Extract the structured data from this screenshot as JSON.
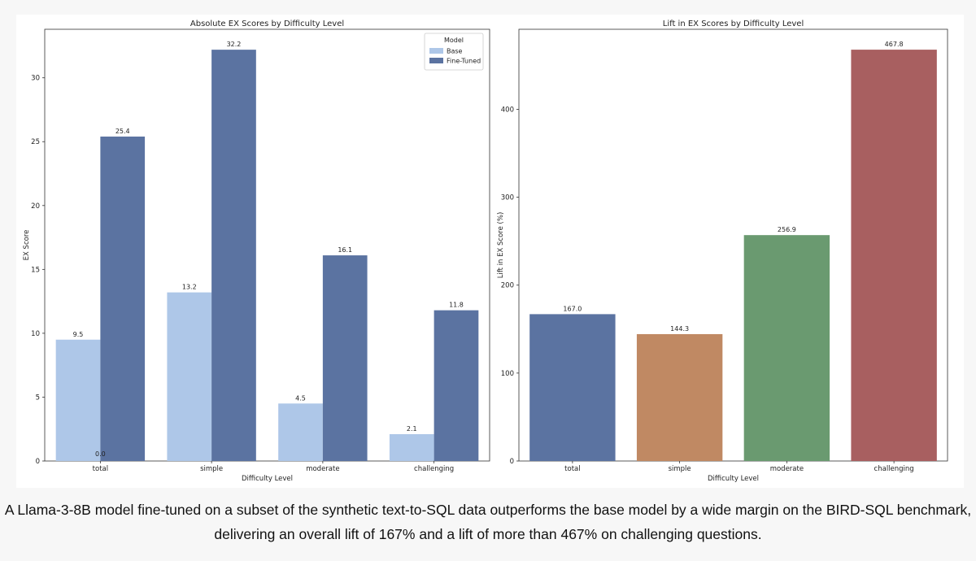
{
  "chart_data": [
    {
      "type": "bar",
      "title": "Absolute EX Scores by Difficulty Level",
      "xlabel": "Difficulty Level",
      "ylabel": "EX Score",
      "categories": [
        "total",
        "simple",
        "moderate",
        "challenging"
      ],
      "series": [
        {
          "name": "Base",
          "values": [
            9.5,
            13.2,
            4.5,
            2.1
          ],
          "color": "#aec7e8"
        },
        {
          "name": "Fine-Tuned",
          "values": [
            25.4,
            32.2,
            16.1,
            11.8
          ],
          "color": "#5b73a1"
        }
      ],
      "value_labels": [
        [
          "9.5",
          "13.2",
          "4.5",
          "2.1"
        ],
        [
          "25.4",
          "32.2",
          "16.1",
          "11.8"
        ]
      ],
      "extra_annotation": "0.0",
      "ylim": [
        0,
        33.8
      ],
      "yticks": [
        0,
        5,
        10,
        15,
        20,
        25,
        30
      ],
      "legend": {
        "title": "Model",
        "position": "top-right"
      },
      "grid": false
    },
    {
      "type": "bar",
      "title": "Lift in EX Scores by Difficulty Level",
      "xlabel": "Difficulty Level",
      "ylabel": "Lift in EX Score (%)",
      "categories": [
        "total",
        "simple",
        "moderate",
        "challenging"
      ],
      "values": [
        167.0,
        144.3,
        256.9,
        467.8
      ],
      "value_labels": [
        "167.0",
        "144.3",
        "256.9",
        "467.8"
      ],
      "colors": [
        "#5b73a1",
        "#c08963",
        "#6a9a70",
        "#a85f60"
      ],
      "ylim": [
        0,
        491
      ],
      "yticks": [
        0,
        100,
        200,
        300,
        400
      ],
      "grid": false
    }
  ],
  "caption": {
    "line1": "A Llama-3-8B model fine-tuned on a subset of the synthetic text-to-SQL data outperforms the base model by a wide margin on the BIRD-SQL benchmark,",
    "line2": "delivering an overall lift of 167% and a lift of more than 467% on challenging questions."
  }
}
